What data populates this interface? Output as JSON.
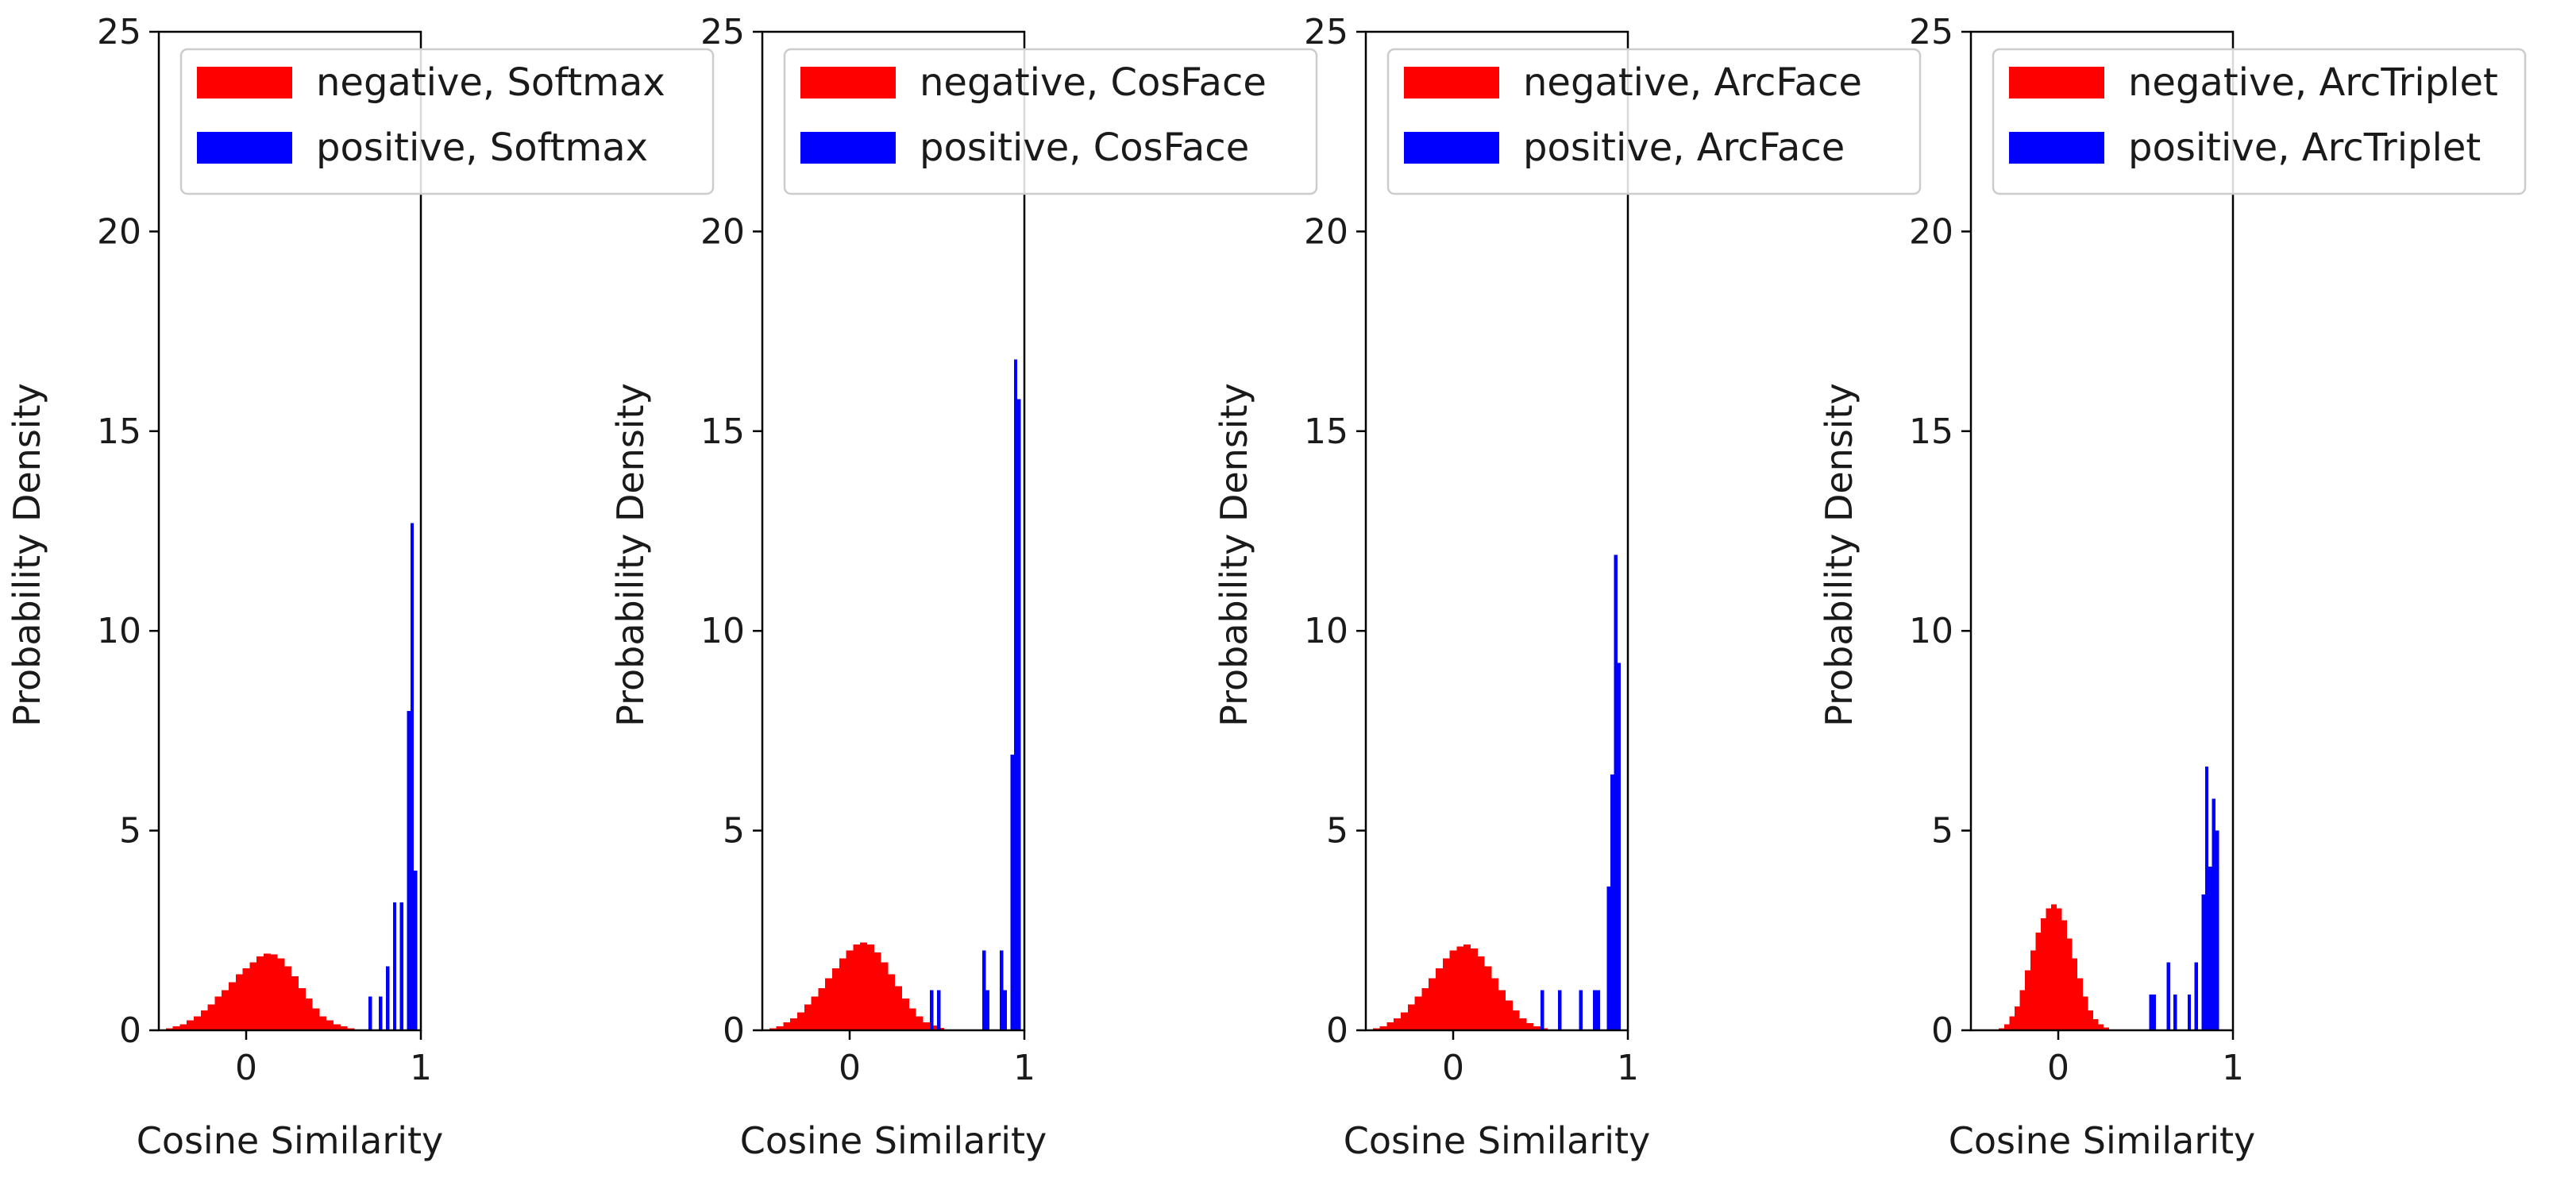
{
  "chart_data": [
    {
      "type": "histogram",
      "xlabel": "Cosine Similarity",
      "ylabel": "Probability Density",
      "xlim": [
        -0.5,
        1.0
      ],
      "ylim": [
        0,
        25
      ],
      "xticks": [
        "0",
        "1"
      ],
      "yticks": [
        "0",
        "5",
        "10",
        "15",
        "20",
        "25"
      ],
      "legend_position": "upper-right",
      "series": [
        {
          "name": "negative, Softmax",
          "color": "#ff0000",
          "bins": [
            [
              -0.46,
              -0.42,
              0.05
            ],
            [
              -0.42,
              -0.38,
              0.1
            ],
            [
              -0.38,
              -0.34,
              0.15
            ],
            [
              -0.34,
              -0.3,
              0.25
            ],
            [
              -0.3,
              -0.26,
              0.35
            ],
            [
              -0.26,
              -0.22,
              0.5
            ],
            [
              -0.22,
              -0.18,
              0.65
            ],
            [
              -0.18,
              -0.14,
              0.85
            ],
            [
              -0.14,
              -0.1,
              1.0
            ],
            [
              -0.1,
              -0.06,
              1.2
            ],
            [
              -0.06,
              -0.02,
              1.4
            ],
            [
              -0.02,
              0.02,
              1.55
            ],
            [
              0.02,
              0.06,
              1.7
            ],
            [
              0.06,
              0.1,
              1.85
            ],
            [
              0.1,
              0.14,
              1.92
            ],
            [
              0.14,
              0.18,
              1.9
            ],
            [
              0.18,
              0.22,
              1.8
            ],
            [
              0.22,
              0.26,
              1.6
            ],
            [
              0.26,
              0.3,
              1.35
            ],
            [
              0.3,
              0.34,
              1.05
            ],
            [
              0.34,
              0.38,
              0.8
            ],
            [
              0.38,
              0.42,
              0.55
            ],
            [
              0.42,
              0.46,
              0.35
            ],
            [
              0.46,
              0.5,
              0.25
            ],
            [
              0.5,
              0.54,
              0.15
            ],
            [
              0.54,
              0.58,
              0.1
            ],
            [
              0.58,
              0.62,
              0.05
            ]
          ]
        },
        {
          "name": "positive, Softmax",
          "color": "#0000ff",
          "bins": [
            [
              0.7,
              0.72,
              0.85
            ],
            [
              0.76,
              0.78,
              0.85
            ],
            [
              0.8,
              0.82,
              1.6
            ],
            [
              0.84,
              0.86,
              3.2
            ],
            [
              0.88,
              0.9,
              3.2
            ],
            [
              0.92,
              0.94,
              8.0
            ],
            [
              0.94,
              0.96,
              12.7
            ],
            [
              0.96,
              0.98,
              4.0
            ]
          ]
        }
      ]
    },
    {
      "type": "histogram",
      "xlabel": "Cosine Similarity",
      "ylabel": "Probability Density",
      "xlim": [
        -0.5,
        1.0
      ],
      "ylim": [
        0,
        25
      ],
      "xticks": [
        "0",
        "1"
      ],
      "yticks": [
        "0",
        "5",
        "10",
        "15",
        "20",
        "25"
      ],
      "legend_position": "upper-right",
      "series": [
        {
          "name": "negative, CosFace",
          "color": "#ff0000",
          "bins": [
            [
              -0.46,
              -0.42,
              0.05
            ],
            [
              -0.42,
              -0.38,
              0.1
            ],
            [
              -0.38,
              -0.34,
              0.2
            ],
            [
              -0.34,
              -0.3,
              0.3
            ],
            [
              -0.3,
              -0.26,
              0.45
            ],
            [
              -0.26,
              -0.22,
              0.65
            ],
            [
              -0.22,
              -0.18,
              0.85
            ],
            [
              -0.18,
              -0.14,
              1.05
            ],
            [
              -0.14,
              -0.1,
              1.3
            ],
            [
              -0.1,
              -0.06,
              1.55
            ],
            [
              -0.06,
              -0.02,
              1.8
            ],
            [
              -0.02,
              0.02,
              2.0
            ],
            [
              0.02,
              0.06,
              2.15
            ],
            [
              0.06,
              0.1,
              2.2
            ],
            [
              0.1,
              0.14,
              2.15
            ],
            [
              0.14,
              0.18,
              1.95
            ],
            [
              0.18,
              0.22,
              1.7
            ],
            [
              0.22,
              0.26,
              1.4
            ],
            [
              0.26,
              0.3,
              1.1
            ],
            [
              0.3,
              0.34,
              0.8
            ],
            [
              0.34,
              0.38,
              0.55
            ],
            [
              0.38,
              0.42,
              0.35
            ],
            [
              0.42,
              0.46,
              0.2
            ],
            [
              0.46,
              0.5,
              0.12
            ],
            [
              0.5,
              0.54,
              0.06
            ]
          ]
        },
        {
          "name": "positive, CosFace",
          "color": "#0000ff",
          "bins": [
            [
              0.46,
              0.48,
              1.0
            ],
            [
              0.5,
              0.52,
              1.0
            ],
            [
              0.76,
              0.78,
              2.0
            ],
            [
              0.78,
              0.8,
              1.0
            ],
            [
              0.86,
              0.88,
              2.0
            ],
            [
              0.88,
              0.9,
              1.0
            ],
            [
              0.92,
              0.94,
              6.9
            ],
            [
              0.94,
              0.96,
              16.8
            ],
            [
              0.96,
              0.98,
              15.8
            ]
          ]
        }
      ]
    },
    {
      "type": "histogram",
      "xlabel": "Cosine Similarity",
      "ylabel": "Probability Density",
      "xlim": [
        -0.5,
        1.0
      ],
      "ylim": [
        0,
        25
      ],
      "xticks": [
        "0",
        "1"
      ],
      "yticks": [
        "0",
        "5",
        "10",
        "15",
        "20",
        "25"
      ],
      "legend_position": "upper-right",
      "series": [
        {
          "name": "negative, ArcFace",
          "color": "#ff0000",
          "bins": [
            [
              -0.46,
              -0.42,
              0.05
            ],
            [
              -0.42,
              -0.38,
              0.1
            ],
            [
              -0.38,
              -0.34,
              0.2
            ],
            [
              -0.34,
              -0.3,
              0.3
            ],
            [
              -0.3,
              -0.26,
              0.45
            ],
            [
              -0.26,
              -0.22,
              0.65
            ],
            [
              -0.22,
              -0.18,
              0.85
            ],
            [
              -0.18,
              -0.14,
              1.05
            ],
            [
              -0.14,
              -0.1,
              1.3
            ],
            [
              -0.1,
              -0.06,
              1.55
            ],
            [
              -0.06,
              -0.02,
              1.8
            ],
            [
              -0.02,
              0.02,
              2.0
            ],
            [
              0.02,
              0.06,
              2.1
            ],
            [
              0.06,
              0.1,
              2.15
            ],
            [
              0.1,
              0.14,
              2.05
            ],
            [
              0.14,
              0.18,
              1.85
            ],
            [
              0.18,
              0.22,
              1.6
            ],
            [
              0.22,
              0.26,
              1.3
            ],
            [
              0.26,
              0.3,
              1.0
            ],
            [
              0.3,
              0.34,
              0.75
            ],
            [
              0.34,
              0.38,
              0.5
            ],
            [
              0.38,
              0.42,
              0.3
            ],
            [
              0.42,
              0.46,
              0.18
            ],
            [
              0.46,
              0.5,
              0.1
            ],
            [
              0.5,
              0.54,
              0.05
            ]
          ]
        },
        {
          "name": "positive, ArcFace",
          "color": "#0000ff",
          "bins": [
            [
              0.5,
              0.52,
              1.0
            ],
            [
              0.6,
              0.62,
              1.0
            ],
            [
              0.72,
              0.74,
              1.0
            ],
            [
              0.8,
              0.82,
              1.0
            ],
            [
              0.82,
              0.84,
              1.0
            ],
            [
              0.88,
              0.9,
              3.6
            ],
            [
              0.9,
              0.92,
              6.4
            ],
            [
              0.92,
              0.94,
              11.9
            ],
            [
              0.94,
              0.96,
              9.2
            ]
          ]
        }
      ]
    },
    {
      "type": "histogram",
      "xlabel": "Cosine Similarity",
      "ylabel": "Probability Density",
      "xlim": [
        -0.5,
        1.0
      ],
      "ylim": [
        0,
        25
      ],
      "xticks": [
        "0",
        "1"
      ],
      "yticks": [
        "0",
        "5",
        "10",
        "15",
        "20",
        "25"
      ],
      "legend_position": "upper-right",
      "series": [
        {
          "name": "negative, ArcTriplet",
          "color": "#ff0000",
          "bins": [
            [
              -0.34,
              -0.31,
              0.05
            ],
            [
              -0.31,
              -0.28,
              0.15
            ],
            [
              -0.28,
              -0.25,
              0.35
            ],
            [
              -0.25,
              -0.22,
              0.6
            ],
            [
              -0.22,
              -0.19,
              1.0
            ],
            [
              -0.19,
              -0.16,
              1.5
            ],
            [
              -0.16,
              -0.13,
              2.0
            ],
            [
              -0.13,
              -0.1,
              2.45
            ],
            [
              -0.1,
              -0.07,
              2.8
            ],
            [
              -0.07,
              -0.04,
              3.05
            ],
            [
              -0.04,
              -0.01,
              3.15
            ],
            [
              -0.01,
              0.02,
              3.05
            ],
            [
              0.02,
              0.05,
              2.75
            ],
            [
              0.05,
              0.08,
              2.3
            ],
            [
              0.08,
              0.11,
              1.8
            ],
            [
              0.11,
              0.14,
              1.3
            ],
            [
              0.14,
              0.17,
              0.85
            ],
            [
              0.17,
              0.2,
              0.5
            ],
            [
              0.2,
              0.23,
              0.28
            ],
            [
              0.23,
              0.26,
              0.15
            ],
            [
              0.26,
              0.29,
              0.07
            ]
          ]
        },
        {
          "name": "positive, ArcTriplet",
          "color": "#0000ff",
          "bins": [
            [
              0.52,
              0.56,
              0.9
            ],
            [
              0.62,
              0.64,
              1.7
            ],
            [
              0.66,
              0.68,
              0.9
            ],
            [
              0.74,
              0.76,
              0.9
            ],
            [
              0.78,
              0.8,
              1.7
            ],
            [
              0.82,
              0.84,
              3.4
            ],
            [
              0.84,
              0.86,
              6.6
            ],
            [
              0.86,
              0.88,
              4.1
            ],
            [
              0.88,
              0.9,
              5.8
            ],
            [
              0.9,
              0.92,
              5.0
            ]
          ]
        }
      ]
    }
  ]
}
